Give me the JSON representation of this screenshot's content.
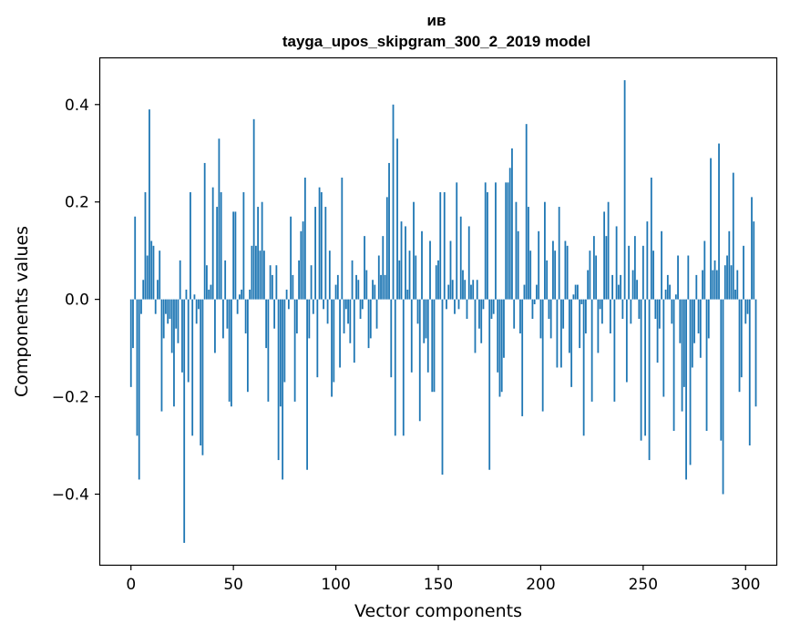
{
  "chart_data": {
    "type": "bar",
    "title_line1": "ив",
    "title_line2": "tayga_upos_skipgram_300_2_2019 model",
    "xlabel": "Vector components",
    "ylabel": "Components values",
    "xlim": [
      -15,
      315
    ],
    "ylim": [
      -0.545,
      0.495
    ],
    "xticks": [
      0,
      50,
      100,
      150,
      200,
      250,
      300
    ],
    "xtick_labels": [
      "0",
      "50",
      "100",
      "150",
      "200",
      "250",
      "300"
    ],
    "yticks": [
      -0.4,
      -0.2,
      0.0,
      0.2,
      0.4
    ],
    "ytick_labels": [
      "−0.4",
      "−0.2",
      "0.0",
      "0.2",
      "0.4"
    ],
    "bar_color": "#1f77b4",
    "grid": false,
    "values": [
      -0.18,
      -0.1,
      0.17,
      -0.28,
      -0.37,
      -0.03,
      0.04,
      0.22,
      0.09,
      0.39,
      0.12,
      0.11,
      -0.03,
      0.04,
      0.1,
      -0.23,
      -0.08,
      -0.03,
      -0.05,
      -0.04,
      -0.11,
      -0.22,
      -0.06,
      -0.09,
      0.08,
      -0.15,
      -0.5,
      0.02,
      -0.17,
      0.22,
      -0.28,
      0.01,
      -0.05,
      -0.02,
      -0.3,
      -0.32,
      0.28,
      0.07,
      0.02,
      0.03,
      0.23,
      -0.11,
      0.19,
      0.33,
      0.22,
      -0.08,
      0.08,
      -0.06,
      -0.21,
      -0.22,
      0.18,
      0.18,
      -0.03,
      0.01,
      0.02,
      0.22,
      -0.07,
      -0.19,
      0.02,
      0.11,
      0.37,
      0.11,
      0.19,
      0.1,
      0.2,
      0.1,
      -0.1,
      -0.21,
      0.07,
      0.05,
      -0.06,
      0.07,
      -0.33,
      -0.22,
      -0.37,
      -0.17,
      0.02,
      -0.02,
      0.17,
      0.05,
      -0.21,
      -0.07,
      0.08,
      0.14,
      0.16,
      0.25,
      -0.35,
      -0.08,
      0.07,
      -0.03,
      0.19,
      -0.16,
      0.23,
      0.22,
      -0.02,
      0.19,
      -0.05,
      0.1,
      -0.2,
      -0.17,
      0.03,
      0.05,
      -0.14,
      0.25,
      -0.07,
      -0.02,
      -0.05,
      -0.09,
      0.08,
      -0.13,
      0.05,
      0.04,
      -0.04,
      -0.02,
      0.13,
      0.06,
      -0.1,
      -0.08,
      0.04,
      0.03,
      -0.06,
      0.09,
      0.05,
      0.13,
      0.05,
      0.21,
      0.28,
      -0.16,
      0.4,
      -0.28,
      0.33,
      0.08,
      0.16,
      -0.28,
      0.15,
      0.02,
      0.1,
      -0.15,
      0.2,
      0.09,
      -0.05,
      -0.25,
      0.14,
      -0.09,
      -0.08,
      -0.15,
      0.12,
      -0.19,
      -0.19,
      0.07,
      0.08,
      0.22,
      -0.36,
      0.22,
      -0.02,
      0.03,
      0.12,
      0.04,
      -0.03,
      0.24,
      -0.02,
      0.17,
      0.06,
      0.04,
      -0.04,
      0.15,
      0.03,
      0.04,
      -0.11,
      0.04,
      -0.06,
      -0.09,
      -0.02,
      0.24,
      0.22,
      -0.35,
      -0.04,
      -0.03,
      0.24,
      -0.15,
      -0.2,
      -0.19,
      -0.12,
      0.24,
      0.24,
      0.27,
      0.31,
      -0.06,
      0.2,
      0.14,
      -0.07,
      -0.24,
      0.03,
      0.36,
      0.19,
      0.1,
      -0.04,
      -0.01,
      0.03,
      0.14,
      -0.08,
      -0.23,
      0.2,
      0.08,
      -0.04,
      -0.08,
      0.12,
      0.1,
      -0.14,
      0.19,
      -0.14,
      -0.06,
      0.12,
      0.11,
      -0.11,
      -0.18,
      0.01,
      0.03,
      0.03,
      -0.1,
      -0.01,
      -0.28,
      -0.07,
      0.06,
      0.1,
      -0.21,
      0.13,
      0.09,
      -0.11,
      -0.02,
      -0.05,
      0.18,
      0.13,
      0.2,
      -0.07,
      0.05,
      -0.21,
      0.15,
      0.03,
      0.05,
      -0.04,
      0.45,
      -0.17,
      0.11,
      -0.05,
      0.06,
      0.13,
      0.04,
      -0.04,
      -0.29,
      0.11,
      -0.28,
      0.16,
      -0.33,
      0.25,
      0.1,
      -0.04,
      -0.13,
      -0.06,
      0.14,
      -0.2,
      0.02,
      0.05,
      0.03,
      -0.05,
      -0.27,
      0.01,
      0.09,
      -0.09,
      -0.23,
      -0.18,
      -0.37,
      0.09,
      -0.34,
      -0.14,
      -0.09,
      0.05,
      -0.07,
      -0.12,
      0.06,
      0.12,
      -0.27,
      -0.08,
      0.29,
      0.06,
      0.08,
      0.06,
      0.32,
      -0.29,
      -0.4,
      0.07,
      0.09,
      0.14,
      0.07,
      0.26,
      0.02,
      0.06,
      -0.19,
      -0.16,
      0.11,
      -0.05,
      -0.03,
      -0.3,
      0.21,
      0.16,
      -0.22
    ]
  }
}
